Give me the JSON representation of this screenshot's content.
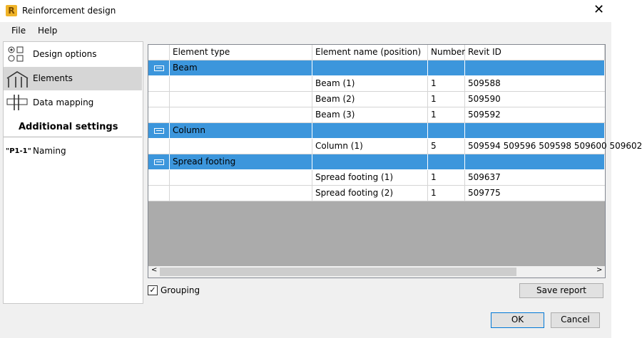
{
  "window": {
    "title": "Reinforcement design"
  },
  "menu": [
    "File",
    "Help"
  ],
  "nav": {
    "items": [
      "Design options",
      "Elements",
      "Data mapping"
    ],
    "additional_heading": "Additional settings",
    "naming_icon": "\"P1-1\"",
    "naming": "Naming"
  },
  "table": {
    "columns": [
      "Element type",
      "Element name (position)",
      "Number",
      "Revit ID"
    ],
    "rows": [
      {
        "group": "Beam"
      },
      {
        "name": "Beam (1)",
        "number": 1,
        "revit_id": "509588"
      },
      {
        "name": "Beam (2)",
        "number": 1,
        "revit_id": "509590"
      },
      {
        "name": "Beam (3)",
        "number": 1,
        "revit_id": "509592"
      },
      {
        "group": "Column"
      },
      {
        "name": "Column (1)",
        "number": 5,
        "revit_id": "509594 509596 509598 509600 509602"
      },
      {
        "group": "Spread footing"
      },
      {
        "name": "Spread footing (1)",
        "number": 1,
        "revit_id": "509637"
      },
      {
        "name": "Spread footing (2)",
        "number": 1,
        "revit_id": "509775"
      }
    ]
  },
  "footer": {
    "grouping": "Grouping",
    "save_report": "Save report",
    "ok": "OK",
    "cancel": "Cancel"
  }
}
